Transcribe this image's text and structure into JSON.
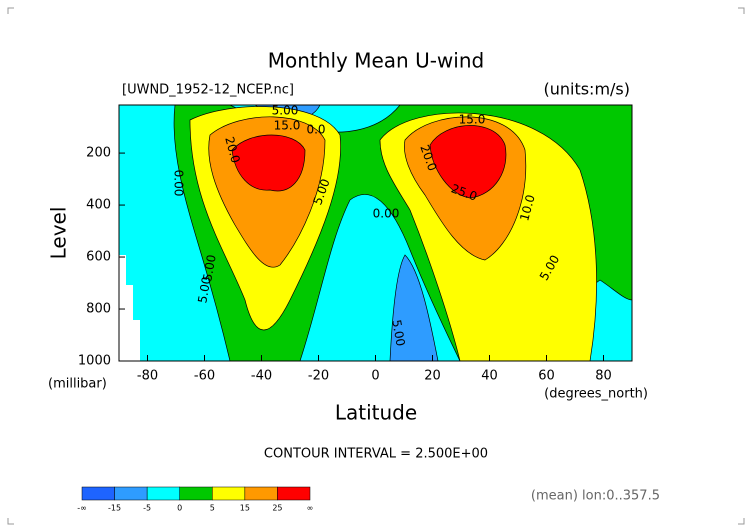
{
  "chart_data": {
    "type": "contour",
    "title": "Monthly Mean U-wind",
    "subtitle": "[UWND_1952-12_NCEP.nc]",
    "units": "(units:m/s)",
    "y_label": "Level",
    "y_units": "(millibar)",
    "x_label": "Latitude",
    "x_units": "(degrees_north)",
    "contour_interval": "CONTOUR INTERVAL = 2.500E+00",
    "footnote": "(mean) lon:0..357.5",
    "xlim": [
      -90,
      90
    ],
    "xticks": [
      -80,
      -60,
      -40,
      -20,
      0,
      20,
      40,
      60,
      80
    ],
    "ylim": [
      1000,
      15
    ],
    "yticks": [
      200,
      400,
      600,
      800,
      1000
    ],
    "contour_labels": [
      "5.00",
      "15.0",
      "0.0",
      "20.0",
      "0.00",
      "5.00",
      "5.00",
      "5.00",
      "0.00",
      "15.0",
      "20.0",
      "25.0",
      "10.0",
      "5.00",
      "5.00"
    ],
    "colorbar": {
      "labels": [
        "-∞",
        "-15",
        "-5",
        "0",
        "5",
        "15",
        "25",
        "∞"
      ],
      "colors": [
        "#1e64ff",
        "#2e9cff",
        "#00ffff",
        "#00c800",
        "#ffff00",
        "#ff9900",
        "#ff0000"
      ]
    }
  }
}
